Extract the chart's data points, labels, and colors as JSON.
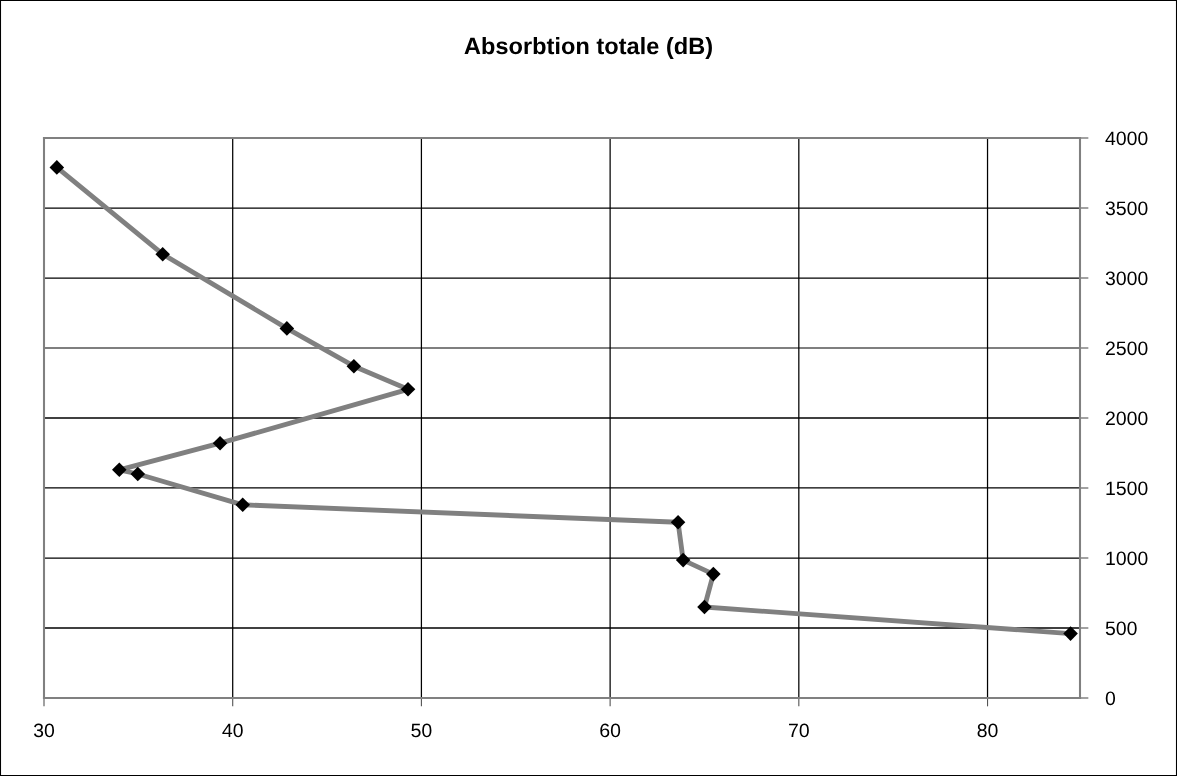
{
  "chart_data": {
    "type": "line",
    "title": "Absorbtion totale (dB)",
    "series": [
      {
        "color": "#808080",
        "marker": "none",
        "x": [
          30.68,
          36.29,
          42.87,
          46.42,
          49.29,
          39.33,
          33.99,
          34.97,
          40.53,
          63.6,
          63.87,
          65.47,
          65.0,
          84.4
        ],
        "values": [
          3790,
          3170,
          2640,
          2370,
          2205,
          1820,
          1630,
          1600,
          1380,
          1255,
          985,
          885,
          650,
          460
        ]
      },
      {
        "type": "scatter",
        "color": "#000000",
        "marker": "diamond",
        "x": [
          30.68,
          36.29,
          42.87,
          46.42,
          49.29,
          39.33,
          33.99,
          34.97,
          40.53,
          63.6,
          63.87,
          65.47,
          65.0,
          84.4
        ],
        "values": [
          3790,
          3170,
          2640,
          2370,
          2205,
          1820,
          1630,
          1600,
          1380,
          1255,
          985,
          885,
          650,
          460
        ]
      }
    ],
    "xlim": [
      30,
      84.9
    ],
    "xticks": [
      30,
      40,
      50,
      60,
      70,
      80
    ],
    "ylim": [
      0,
      4000
    ],
    "yticks": [
      0,
      500,
      1000,
      1500,
      2000,
      2500,
      3000,
      3500,
      4000
    ],
    "grid": true,
    "legend": false
  }
}
